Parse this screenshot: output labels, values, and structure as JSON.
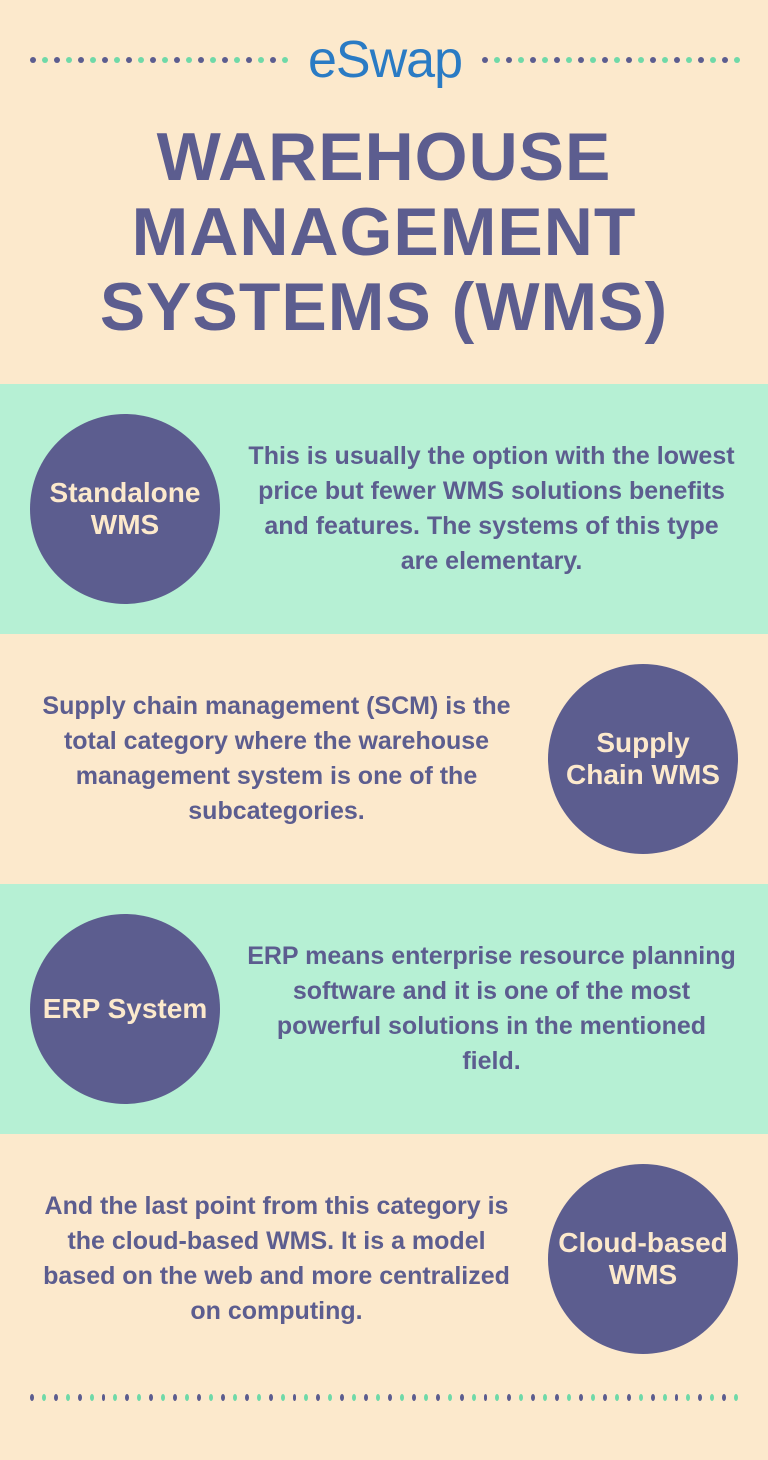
{
  "colors": {
    "page_bg": "#fce9cc",
    "mint_bg": "#b6f0d4",
    "logo_color": "#2a7bc4",
    "title_color": "#5c5d8f",
    "circle_bg": "#5c5d8f",
    "circle_text": "#fce9cc",
    "desc_color": "#5c5d8f",
    "dot_dark": "#5c5d8f",
    "dot_mint": "#6fd9a8"
  },
  "logo": "eSwap",
  "title": "WAREHOUSE MANAGEMENT SYSTEMS (WMS)",
  "sections": [
    {
      "label": "Standalone WMS",
      "desc": "This is usually the option with the lowest price but fewer WMS solutions benefits and features. The systems of this type are elementary.",
      "bg": "#b6f0d4",
      "circle_side": "left"
    },
    {
      "label": "Supply Chain WMS",
      "desc": "Supply chain management (SCM) is the total category where the warehouse management system is one of the subcategories.",
      "bg": "#fce9cc",
      "circle_side": "right"
    },
    {
      "label": "ERP System",
      "desc": "ERP means enterprise resource planning software and it is one of the most powerful solutions in the mentioned field.",
      "bg": "#b6f0d4",
      "circle_side": "left"
    },
    {
      "label": "Cloud-based WMS",
      "desc": "And the last point from this category is the cloud-based WMS. It is a model based on the web and more centralized on computing.",
      "bg": "#fce9cc",
      "circle_side": "right"
    }
  ],
  "header_dots_each_side": 22,
  "bottom_dots_count": 60
}
